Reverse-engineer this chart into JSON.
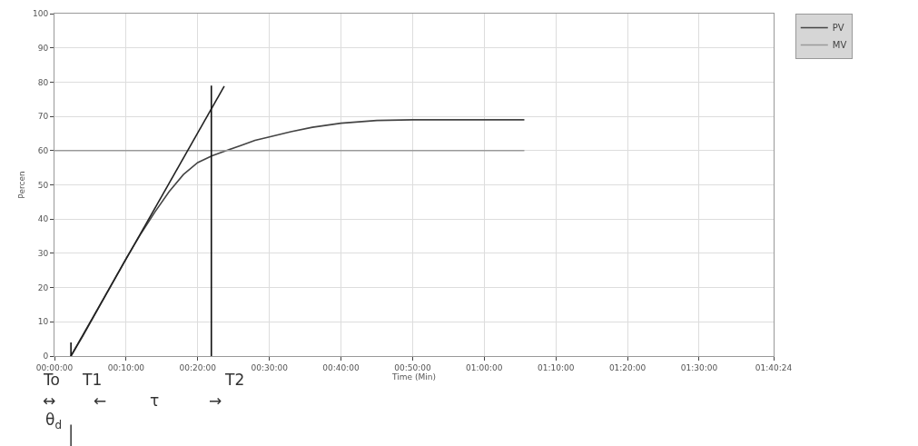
{
  "chart_data": {
    "type": "line",
    "xlabel": "Time (Min)",
    "ylabel": "Percen",
    "xlim": [
      0,
      100.4
    ],
    "xticks": [
      {
        "value": 0,
        "label": "00:00:00"
      },
      {
        "value": 10,
        "label": "00:10:00"
      },
      {
        "value": 20,
        "label": "00:20:00"
      },
      {
        "value": 30,
        "label": "00:30:00"
      },
      {
        "value": 40,
        "label": "00:40:00"
      },
      {
        "value": 50,
        "label": "00:50:00"
      },
      {
        "value": 60,
        "label": "01:00:00"
      },
      {
        "value": 70,
        "label": "01:10:00"
      },
      {
        "value": 80,
        "label": "01:20:00"
      },
      {
        "value": 90,
        "label": "01:30:00"
      },
      {
        "value": 100.4,
        "label": "01:40:24"
      }
    ],
    "ylim": [
      0,
      100
    ],
    "yticks": [
      0,
      10,
      20,
      30,
      40,
      50,
      60,
      70,
      80,
      90,
      100
    ],
    "series": [
      {
        "name": "PV",
        "color": "#444444",
        "x": [
          2.3,
          4,
          6,
          8,
          10,
          12,
          14,
          16,
          18,
          20,
          22,
          24,
          26,
          28,
          30,
          33,
          36,
          40,
          45,
          50,
          55,
          60,
          65.6
        ],
        "values": [
          0,
          6,
          13.5,
          21,
          28.5,
          35.5,
          42,
          48,
          53,
          56.5,
          58.5,
          60,
          61.5,
          63,
          64,
          65.5,
          66.8,
          68,
          68.8,
          69,
          69,
          69,
          69
        ]
      },
      {
        "name": "MV",
        "color": "#9a9a9a",
        "x": [
          0,
          65.6
        ],
        "values": [
          60,
          60
        ]
      },
      {
        "color": "#222222",
        "x": [
          2.3,
          23.7
        ],
        "values": [
          0,
          78.8
        ]
      },
      {
        "color": "#111111",
        "x": [
          21.9,
          21.9
        ],
        "values": [
          0,
          79
        ]
      },
      {
        "color": "#111111",
        "x": [
          2.3,
          2.3
        ],
        "values": [
          0,
          4
        ]
      }
    ],
    "annotations": [
      "To",
      "T1",
      "T2",
      "↔",
      "←",
      "τ",
      "→",
      "θ$_{d}$"
    ],
    "grid": true,
    "legend": "top right",
    "marker": "none",
    "line_style": "solid"
  }
}
